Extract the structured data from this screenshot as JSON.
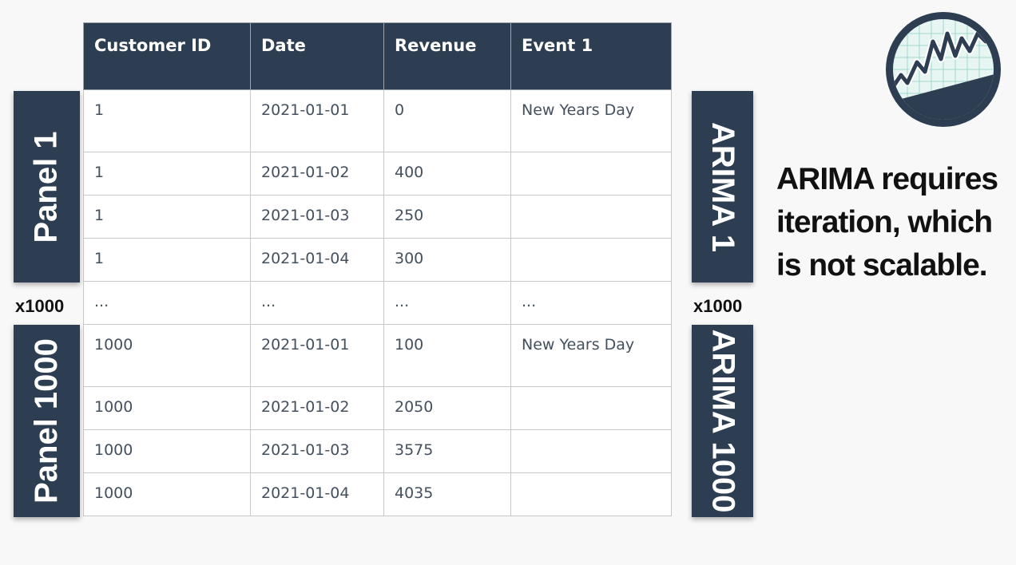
{
  "table": {
    "headers": [
      "Customer ID",
      "Date",
      "Revenue",
      "Event 1"
    ],
    "rows": [
      [
        "1",
        "2021-01-01",
        "0",
        "New Years Day"
      ],
      [
        "1",
        "2021-01-02",
        "400",
        ""
      ],
      [
        "1",
        "2021-01-03",
        "250",
        ""
      ],
      [
        "1",
        "2021-01-04",
        "300",
        ""
      ],
      [
        "...",
        "...",
        "...",
        "..."
      ],
      [
        "1000",
        "2021-01-01",
        "100",
        "New Years Day"
      ],
      [
        "1000",
        "2021-01-02",
        "2050",
        ""
      ],
      [
        "1000",
        "2021-01-03",
        "3575",
        ""
      ],
      [
        "1000",
        "2021-01-04",
        "4035",
        ""
      ]
    ]
  },
  "left": {
    "panel_1": "Panel 1",
    "multiplier": "x1000",
    "panel_1000": "Panel 1000"
  },
  "right": {
    "arima_1": "ARIMA 1",
    "multiplier": "x1000",
    "arima_1000": "ARIMA 1000"
  },
  "note": {
    "lines": [
      "ARIMA requires",
      "iteration, which",
      "is not scalable."
    ]
  },
  "colors": {
    "header_bg": "#2e3e52",
    "accent": "#2e3e52"
  },
  "logo_icon": "stock-chart-logo-icon"
}
